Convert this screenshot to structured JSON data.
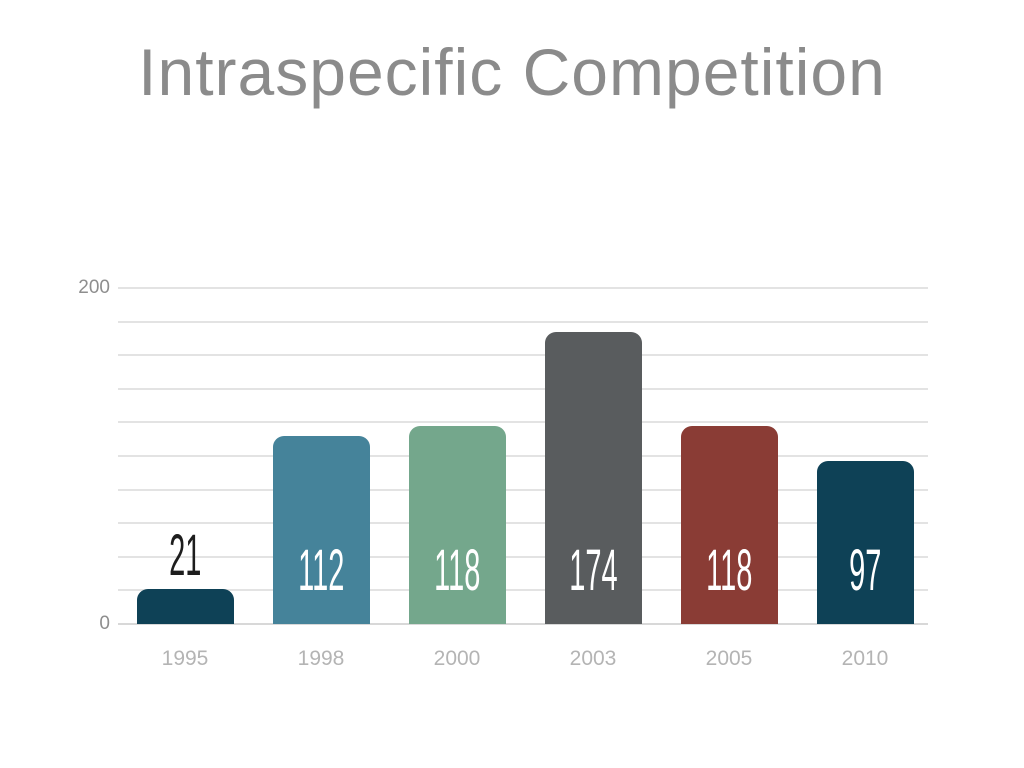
{
  "slide": {
    "title": "Intraspecific Competition"
  },
  "chart_data": {
    "type": "bar",
    "title": "Intraspecific Competition",
    "categories": [
      "1995",
      "1998",
      "2000",
      "2003",
      "2005",
      "2010"
    ],
    "values": [
      21,
      112,
      118,
      174,
      118,
      97
    ],
    "bar_colors": [
      "#0e4156",
      "#45839a",
      "#74a78c",
      "#595c5e",
      "#8a3c35",
      "#0e4156"
    ],
    "value_labels": [
      "21",
      "112",
      "118",
      "174",
      "118",
      "97"
    ],
    "xlabel": "",
    "ylabel": "",
    "ylim": [
      0,
      200
    ],
    "ytick_labels": [
      "0",
      "200"
    ],
    "ytick_values": [
      0,
      200
    ],
    "gridline_step": 20,
    "grid": true,
    "legend": "none",
    "style": {
      "background": "#ffffff",
      "title_color": "#8b8b8b",
      "gridline_color": "#e3e3e3",
      "baseline_color": "#d8d8d8",
      "ytick_color": "#8e8e8e",
      "xtick_color": "#b4b4b4",
      "value_label_inside_color": "#ffffff",
      "value_label_outside_color": "#1d1d1d"
    }
  }
}
